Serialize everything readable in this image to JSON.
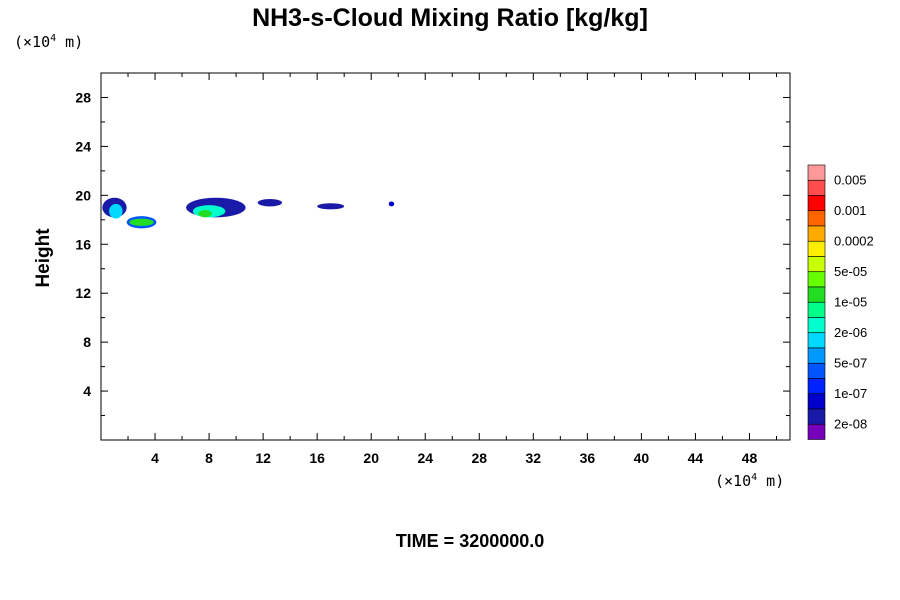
{
  "chart_data": {
    "type": "heatmap",
    "title": "NH3-s-Cloud Mixing Ratio [kg/kg]",
    "xlabel": "",
    "ylabel": "Height",
    "x_unit": {
      "base": "(×10",
      "exp": "4",
      "rest": " m)"
    },
    "y_unit": {
      "base": "(×10",
      "exp": "4",
      "rest": " m)"
    },
    "xlim": [
      0,
      51
    ],
    "ylim": [
      0,
      30
    ],
    "x_ticks": [
      4,
      8,
      12,
      16,
      20,
      24,
      28,
      32,
      36,
      40,
      44,
      48
    ],
    "y_ticks": [
      4,
      8,
      12,
      16,
      20,
      24,
      28
    ],
    "colorbar": {
      "labels": [
        "0.005",
        "0.001",
        "0.0002",
        "5e-05",
        "1e-05",
        "2e-06",
        "5e-07",
        "1e-07",
        "2e-08"
      ],
      "colors_top_to_bottom": [
        "#ff9999",
        "#ff4d4d",
        "#ff0000",
        "#ff6600",
        "#ffaa00",
        "#ffee00",
        "#c8ff00",
        "#66ff00",
        "#22dd22",
        "#00ff88",
        "#00ffcc",
        "#00d8ff",
        "#0099ff",
        "#0055ff",
        "#0022ff",
        "#0000cc",
        "#1a1aa8",
        "#7700bb"
      ]
    },
    "cloud_regions": [
      {
        "x_center": 1.0,
        "y_center": 19.0,
        "x_half_width": 0.9,
        "y_half_height": 0.8,
        "color": "#1a1aa8"
      },
      {
        "x_center": 1.1,
        "y_center": 18.7,
        "x_half_width": 0.5,
        "y_half_height": 0.6,
        "color": "#00d8ff"
      },
      {
        "x_center": 3.0,
        "y_center": 17.8,
        "x_half_width": 1.1,
        "y_half_height": 0.5,
        "color": "#0055ff"
      },
      {
        "x_center": 3.0,
        "y_center": 17.8,
        "x_half_width": 0.9,
        "y_half_height": 0.3,
        "color": "#22dd22"
      },
      {
        "x_center": 8.5,
        "y_center": 19.0,
        "x_half_width": 2.2,
        "y_half_height": 0.8,
        "color": "#1a1aa8"
      },
      {
        "x_center": 8.0,
        "y_center": 18.7,
        "x_half_width": 1.2,
        "y_half_height": 0.5,
        "color": "#00ffcc"
      },
      {
        "x_center": 7.7,
        "y_center": 18.5,
        "x_half_width": 0.5,
        "y_half_height": 0.3,
        "color": "#22dd22"
      },
      {
        "x_center": 12.5,
        "y_center": 19.4,
        "x_half_width": 0.9,
        "y_half_height": 0.3,
        "color": "#1a1aa8"
      },
      {
        "x_center": 17.0,
        "y_center": 19.1,
        "x_half_width": 1.0,
        "y_half_height": 0.25,
        "color": "#1a1aa8"
      },
      {
        "x_center": 21.5,
        "y_center": 19.3,
        "x_half_width": 0.2,
        "y_half_height": 0.2,
        "color": "#0000cc"
      }
    ],
    "grid": false
  },
  "time_label": "TIME = 3200000.0"
}
